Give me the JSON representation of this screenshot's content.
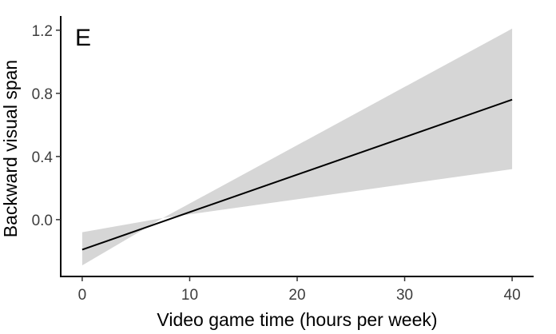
{
  "chart_data": {
    "type": "line",
    "panel_label": "E",
    "xlabel": "Video game time (hours per week)",
    "ylabel": "Backward visual span",
    "xlim": [
      -2,
      42
    ],
    "ylim": [
      -0.36,
      1.29
    ],
    "xticks": [
      0,
      10,
      20,
      30,
      40
    ],
    "yticks": [
      0.0,
      0.4,
      0.8,
      1.2
    ],
    "xtick_labels": [
      "0",
      "10",
      "20",
      "30",
      "40"
    ],
    "ytick_labels": [
      "0.0",
      "0.4",
      "0.8",
      "1.2"
    ],
    "grid": false,
    "series": [
      {
        "x": [
          0,
          40
        ],
        "y": [
          -0.19,
          0.76
        ],
        "ci_lower": [
          -0.29,
          0.32
        ],
        "ci_upper": [
          -0.08,
          1.21
        ],
        "crossover_x": 7.5,
        "crossover_y": 0.01
      }
    ],
    "colors": {
      "line": "#000000",
      "ribbon": "#d6d6d6",
      "axis": "#000000"
    }
  }
}
